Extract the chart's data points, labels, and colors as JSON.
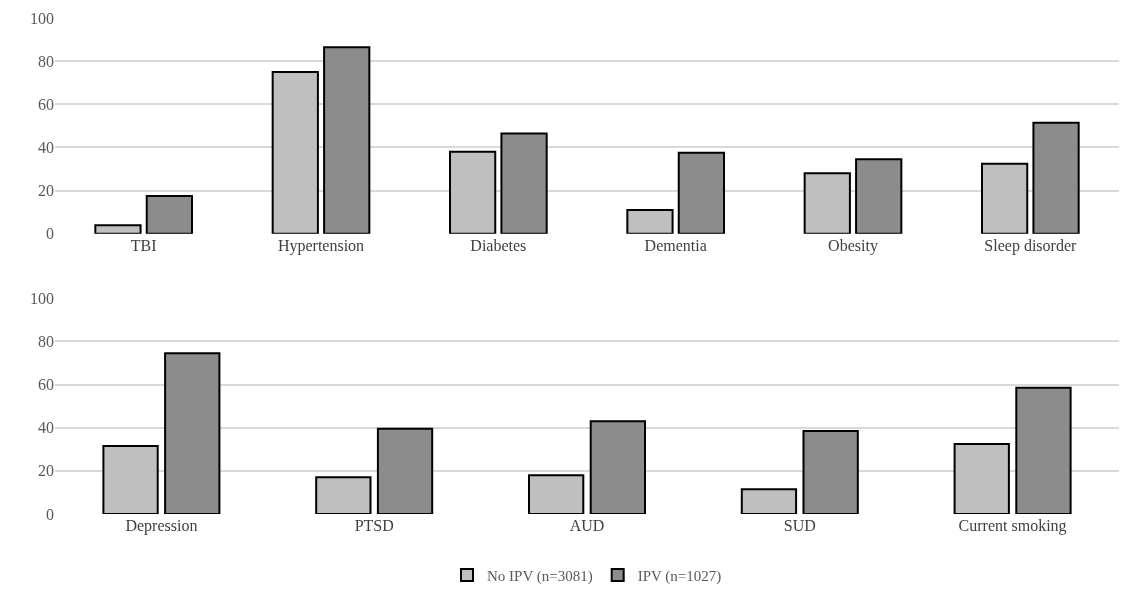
{
  "chart_data": [
    {
      "type": "bar",
      "categories": [
        "TBI",
        "Hypertension",
        "Diabetes",
        "Dementia",
        "Obesity",
        "Sleep disorder"
      ],
      "series": [
        {
          "color": "#bfbfbf",
          "values": [
            4,
            75,
            38,
            11,
            28,
            32.5
          ]
        },
        {
          "color": "#8c8c8c",
          "values": [
            17.5,
            86.5,
            46.5,
            37.5,
            34.5,
            51.5
          ]
        }
      ],
      "ylim": [
        0,
        100
      ],
      "yticks": [
        0,
        20,
        40,
        60,
        80,
        100
      ],
      "grid": "y",
      "legend": false
    },
    {
      "type": "bar",
      "categories": [
        "Depression",
        "PTSD",
        "AUD",
        "SUD",
        "Current smoking"
      ],
      "series": [
        {
          "name": "No IPV (n=3081)",
          "color": "#bfbfbf",
          "values": [
            31.5,
            17,
            18,
            11.5,
            32.5
          ]
        },
        {
          "name": "IPV (n=1027)",
          "color": "#8c8c8c",
          "values": [
            74.5,
            39.5,
            43,
            38.5,
            58.5
          ]
        }
      ],
      "ylim": [
        0,
        100
      ],
      "yticks": [
        0,
        20,
        40,
        60,
        80,
        100
      ],
      "grid": "y",
      "legend": "bottom"
    }
  ]
}
